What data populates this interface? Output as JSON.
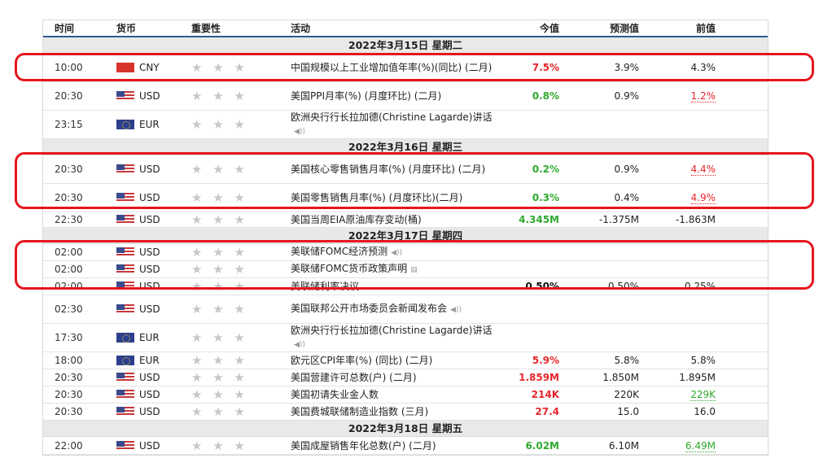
{
  "columns": {
    "time": "时间",
    "currency": "货币",
    "importance": "重要性",
    "event": "活动",
    "actual": "今值",
    "forecast": "预测值",
    "previous": "前值"
  },
  "stars": "★ ★ ★",
  "speaker_icon": "◀))",
  "doc_icon": "▤",
  "colors": {
    "highlight": "#e5161d",
    "up": "#e8262b",
    "down": "#2eaa2e",
    "header_rule": "#2d5b8e"
  },
  "days": [
    {
      "date": "2022年3月15日  星期二",
      "rows": [
        {
          "time": "10:00",
          "currency": "CNY",
          "flag": "cny",
          "event": "中国规模以上工业增加值年率(%)(同比) (二月)",
          "actual": "7.5%",
          "actual_color": "red",
          "forecast": "3.9%",
          "previous": "4.3%",
          "previous_style": "plain"
        },
        {
          "time": "20:30",
          "currency": "USD",
          "flag": "usd",
          "event": "美国PPI月率(%) (月度环比) (二月)",
          "actual": "0.8%",
          "actual_color": "green",
          "forecast": "0.9%",
          "previous": "1.2%",
          "previous_style": "dot-red"
        },
        {
          "time": "23:15",
          "currency": "EUR",
          "flag": "eur",
          "event": "欧洲央行行长拉加德(Christine Lagarde)讲话",
          "icon": "speaker",
          "actual": "",
          "actual_color": "black",
          "forecast": "",
          "previous": "",
          "previous_style": "plain"
        }
      ]
    },
    {
      "date": "2022年3月16日  星期三",
      "rows": [
        {
          "time": "20:30",
          "currency": "USD",
          "flag": "usd",
          "event": "美国核心零售销售月率(%) (月度环比) (二月)",
          "actual": "0.2%",
          "actual_color": "green",
          "forecast": "0.9%",
          "previous": "4.4%",
          "previous_style": "dot-red"
        },
        {
          "time": "20:30",
          "currency": "USD",
          "flag": "usd",
          "event": "美国零售销售月率(%) (月度环比)(二月)",
          "actual": "0.3%",
          "actual_color": "green",
          "forecast": "0.4%",
          "previous": "4.9%",
          "previous_style": "dot-red"
        },
        {
          "time": "22:30",
          "currency": "USD",
          "flag": "usd",
          "event": "美国当周EIA原油库存变动(桶)",
          "actual": "4.345M",
          "actual_color": "green",
          "forecast": "-1.375M",
          "previous": "-1.863M",
          "previous_style": "plain"
        }
      ]
    },
    {
      "date": "2022年3月17日  星期四",
      "rows": [
        {
          "time": "02:00",
          "currency": "USD",
          "flag": "usd",
          "event": "美联储FOMC经济预测",
          "icon": "speaker",
          "actual": "",
          "actual_color": "black",
          "forecast": "",
          "previous": "",
          "previous_style": "plain"
        },
        {
          "time": "02:00",
          "currency": "USD",
          "flag": "usd",
          "event": "美联储FOMC货币政策声明",
          "icon": "doc",
          "actual": "",
          "actual_color": "black",
          "forecast": "",
          "previous": "",
          "previous_style": "plain"
        },
        {
          "time": "02:00",
          "currency": "USD",
          "flag": "usd",
          "event": "美联储利率决议",
          "actual": "0.50%",
          "actual_color": "black",
          "forecast": "0.50%",
          "previous": "0.25%",
          "previous_style": "plain"
        },
        {
          "time": "02:30",
          "currency": "USD",
          "flag": "usd",
          "event": "美国联邦公开市场委员会新闻发布会",
          "icon": "speaker",
          "actual": "",
          "actual_color": "black",
          "forecast": "",
          "previous": "",
          "previous_style": "plain"
        },
        {
          "time": "17:30",
          "currency": "EUR",
          "flag": "eur",
          "event": "欧洲央行行长拉加德(Christine Lagarde)讲话",
          "icon": "speaker",
          "actual": "",
          "actual_color": "black",
          "forecast": "",
          "previous": "",
          "previous_style": "plain"
        },
        {
          "time": "18:00",
          "currency": "EUR",
          "flag": "eur",
          "event": "欧元区CPI年率(%) (同比) (二月)",
          "actual": "5.9%",
          "actual_color": "red",
          "forecast": "5.8%",
          "previous": "5.8%",
          "previous_style": "plain"
        },
        {
          "time": "20:30",
          "currency": "USD",
          "flag": "usd",
          "event": "美国营建许可总数(户) (二月)",
          "actual": "1.859M",
          "actual_color": "red",
          "forecast": "1.850M",
          "previous": "1.895M",
          "previous_style": "plain"
        },
        {
          "time": "20:30",
          "currency": "USD",
          "flag": "usd",
          "event": "美国初请失业金人数",
          "actual": "214K",
          "actual_color": "red",
          "forecast": "220K",
          "previous": "229K",
          "previous_style": "dot-green"
        },
        {
          "time": "20:30",
          "currency": "USD",
          "flag": "usd",
          "event": "美国费城联储制造业指数 (三月)",
          "actual": "27.4",
          "actual_color": "red",
          "forecast": "15.0",
          "previous": "16.0",
          "previous_style": "plain"
        }
      ]
    },
    {
      "date": "2022年3月18日  星期五",
      "rows": [
        {
          "time": "22:00",
          "currency": "USD",
          "flag": "usd",
          "event": "美国成屋销售年化总数(户) (二月)",
          "actual": "6.02M",
          "actual_color": "green",
          "forecast": "6.10M",
          "previous": "6.49M",
          "previous_style": "dot-green"
        }
      ]
    }
  ]
}
